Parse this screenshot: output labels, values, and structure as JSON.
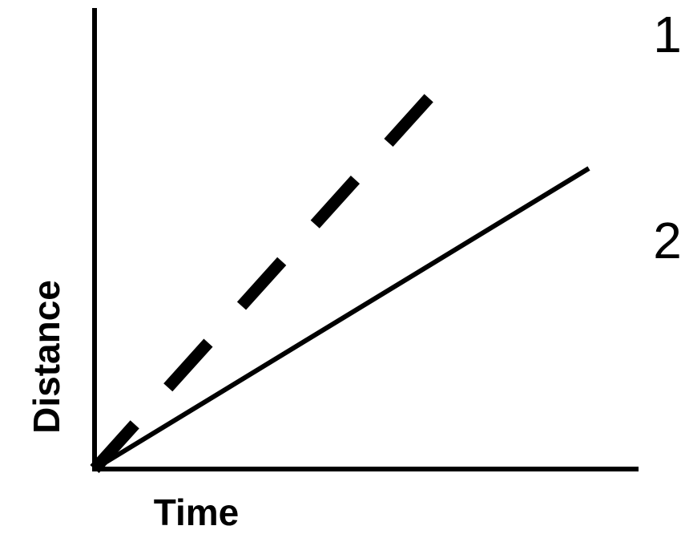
{
  "chart_data": {
    "type": "line",
    "title": "",
    "xlabel": "Time",
    "ylabel": "Distance",
    "grid": false,
    "ticks": false,
    "series": [
      {
        "name": "1",
        "style": "dashed",
        "color": "#000000"
      },
      {
        "name": "2",
        "style": "solid",
        "color": "#000000"
      }
    ]
  }
}
